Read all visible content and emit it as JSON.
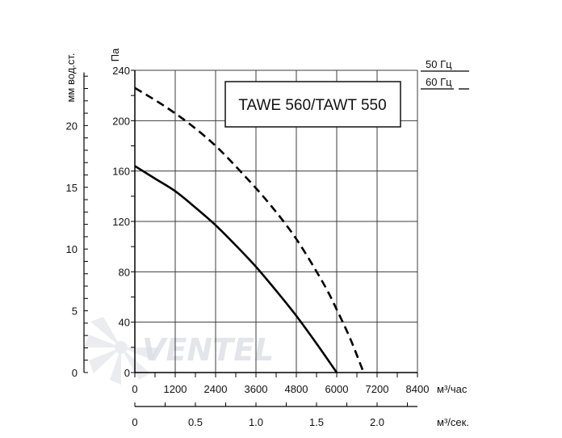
{
  "chart_data": {
    "type": "line",
    "title": "TAWE 560/TAWT 550",
    "ylabel_left": "мм вод.ст.",
    "ylabel_main": "Па",
    "xlabel_main": "м³/час",
    "xlabel_secondary": "м³/сек.",
    "xlim": [
      0,
      8400
    ],
    "ylim": [
      0,
      240
    ],
    "x_ticks": [
      "0",
      "1200",
      "2400",
      "3600",
      "4800",
      "6000",
      "7200",
      "8400"
    ],
    "x_tick_values": [
      0,
      1200,
      2400,
      3600,
      4800,
      6000,
      7200,
      8400
    ],
    "y_ticks": [
      "0",
      "40",
      "80",
      "120",
      "160",
      "200",
      "240"
    ],
    "y_tick_values": [
      0,
      40,
      80,
      120,
      160,
      200,
      240
    ],
    "y2_ticks": [
      "0",
      "5",
      "10",
      "15",
      "20"
    ],
    "y2_tick_values": [
      0,
      5,
      10,
      15,
      20
    ],
    "x2_ticks": [
      "0",
      "0.5",
      "1.0",
      "1.5",
      "2.0"
    ],
    "x2_tick_values": [
      0,
      0.5,
      1.0,
      1.5,
      2.0
    ],
    "x2_lim": [
      0,
      2.3333
    ],
    "grid": true,
    "legend_position": "top-right",
    "series": [
      {
        "name": "50 Гц",
        "style": "solid",
        "x": [
          0,
          600,
          1200,
          1800,
          2400,
          3000,
          3600,
          4200,
          4800,
          5400,
          6000
        ],
        "y": [
          164,
          154,
          144,
          131,
          117,
          101,
          84,
          65,
          45,
          23,
          0
        ]
      },
      {
        "name": "60 Гц",
        "style": "dashed",
        "x": [
          0,
          800,
          1600,
          2400,
          3200,
          4000,
          4800,
          5600,
          6000,
          6400,
          6800
        ],
        "y": [
          226,
          213,
          198,
          180,
          158,
          134,
          106,
          71,
          50,
          27,
          0
        ]
      }
    ],
    "colors": {
      "line": "#000000",
      "grid": "#3c3c3c",
      "watermark": "#d9dde3"
    },
    "watermark_text": "VENTEL"
  }
}
